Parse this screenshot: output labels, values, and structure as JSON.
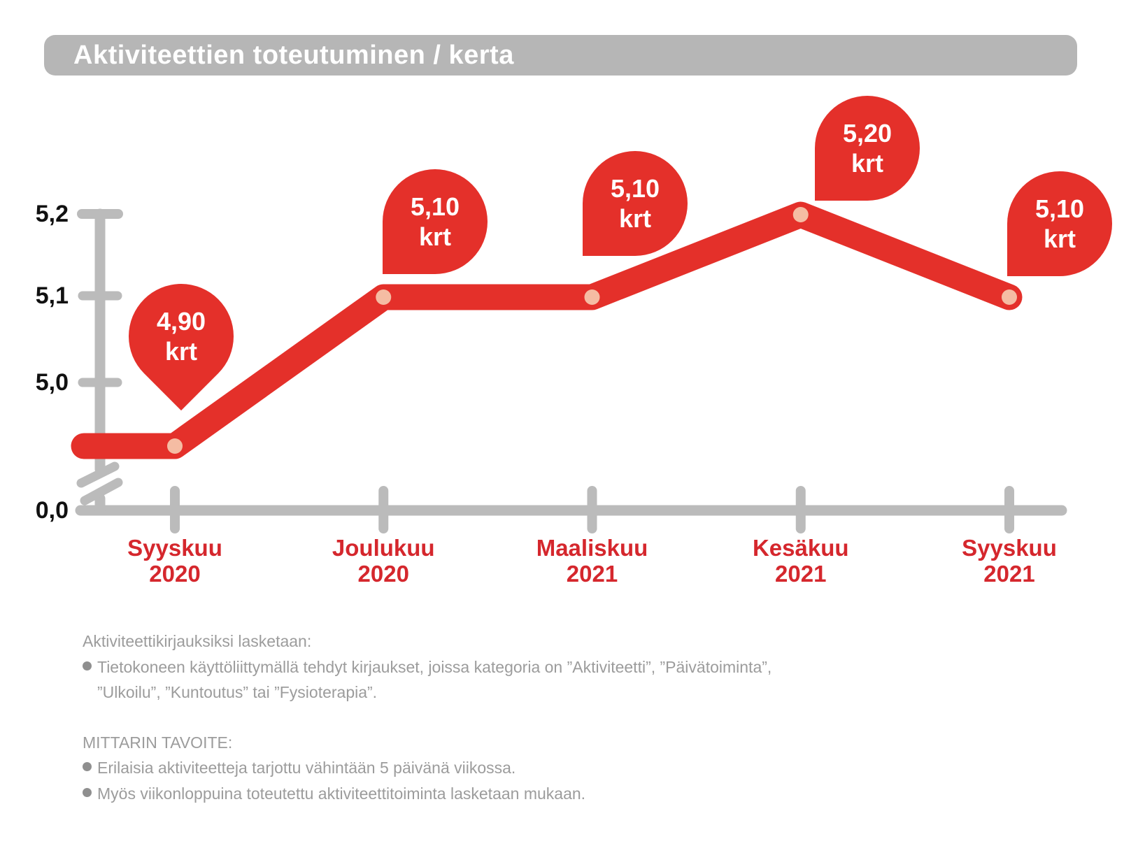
{
  "title": "Aktiviteettien toteutuminen / kerta",
  "chart_data": {
    "type": "line",
    "title": "Aktiviteettien toteutuminen / kerta",
    "categories": [
      "Syyskuu 2020",
      "Joulukuu 2020",
      "Maaliskuu 2021",
      "Kesäkuu 2021",
      "Syyskuu 2021"
    ],
    "values": [
      4.9,
      5.1,
      5.1,
      5.2,
      5.1
    ],
    "value_labels": [
      "4,90 krt",
      "5,10 krt",
      "5,20 krt"
    ],
    "unit": "krt",
    "y_tick_labels": [
      "5,2",
      "5,1",
      "5,0",
      "0,0"
    ],
    "y_axis_break": true,
    "ylim": [
      0,
      5.2
    ],
    "xlabel": "",
    "ylabel": "",
    "grid": false,
    "legend": false,
    "colors": {
      "line": "#E4302A",
      "balloon": "#E4302A",
      "point": "#F5BCA3",
      "axis": "#BBBBBB",
      "month_label": "#D5272D",
      "banner_bg": "#B6B6B6",
      "banner_text": "#FFFFFF",
      "y_label": "#111111",
      "footer_text": "#9C9C9C"
    }
  },
  "footer": {
    "intro_heading": "Aktiviteettikirjauksiksi lasketaan:",
    "intro_bullet": "Tietokoneen käyttöliittymällä tehdyt kirjaukset, joissa kategoria on ”Aktiviteetti”, ”Päivätoiminta”,",
    "intro_continuation": "”Ulkoilu”, ”Kuntoutus” tai ”Fysioterapia”.",
    "goal_heading": "MITTARIN TAVOITE:",
    "goal_bullets": [
      "Erilaisia aktiviteetteja tarjottu vähintään 5 päivänä viikossa.",
      "Myös viikonloppuina toteutettu aktiviteettitoiminta lasketaan mukaan."
    ]
  }
}
